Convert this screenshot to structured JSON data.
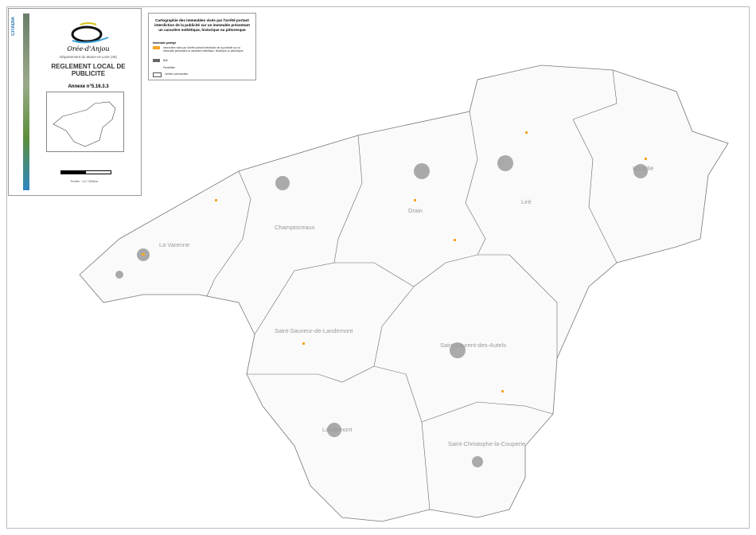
{
  "cartouche": {
    "brand": "CITADIA",
    "logo_text": "Orée-d'Anjou",
    "department": "Département du Maine-et-Loire (49)",
    "title": "REGLEMENT LOCAL DE PUBLICITE",
    "annexe": "Annexe n°5.16.3.3",
    "scale_text": "Echelle : 1/17 000ème"
  },
  "legend": {
    "title": "Cartographie des immeubles visés par l'arrêté portant interdiction de la publicité sur un immeuble présentant un caractère esthétique, historique ou pittoresque",
    "section": "Immeuble protégé",
    "items": [
      {
        "label": "Immeubles visés par l'arrêté portant interdiction de la publicité sur un immeuble présentant un caractère esthétique, historique ou pittoresque",
        "color": "#f5a623"
      },
      {
        "label": "Bâti",
        "color": "#666666"
      },
      {
        "label": "Parcellaire",
        "color": "none"
      },
      {
        "label": "Limites communales",
        "color": "#ffffff"
      }
    ]
  },
  "map": {
    "communes": [
      "La Varenne",
      "Champtoceaux",
      "Drain",
      "Liré",
      "Bouzillé",
      "Saint-Sauveur-de-Landemont",
      "Saint-Laurent-des-Autels",
      "Landemont",
      "Saint-Christophe-la-Couperie"
    ]
  }
}
